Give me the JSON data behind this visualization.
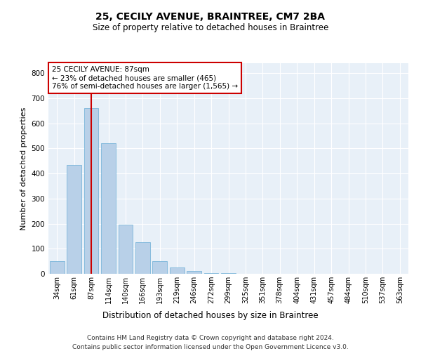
{
  "title1": "25, CECILY AVENUE, BRAINTREE, CM7 2BA",
  "title2": "Size of property relative to detached houses in Braintree",
  "xlabel": "Distribution of detached houses by size in Braintree",
  "ylabel": "Number of detached properties",
  "footer1": "Contains HM Land Registry data © Crown copyright and database right 2024.",
  "footer2": "Contains public sector information licensed under the Open Government Licence v3.0.",
  "annotation_line1": "25 CECILY AVENUE: 87sqm",
  "annotation_line2": "← 23% of detached houses are smaller (465)",
  "annotation_line3": "76% of semi-detached houses are larger (1,565) →",
  "bar_labels": [
    "34sqm",
    "61sqm",
    "87sqm",
    "114sqm",
    "140sqm",
    "166sqm",
    "193sqm",
    "219sqm",
    "246sqm",
    "272sqm",
    "299sqm",
    "325sqm",
    "351sqm",
    "378sqm",
    "404sqm",
    "431sqm",
    "457sqm",
    "484sqm",
    "510sqm",
    "537sqm",
    "563sqm"
  ],
  "bar_values": [
    50,
    435,
    660,
    520,
    195,
    125,
    50,
    25,
    10,
    3,
    2,
    0,
    0,
    0,
    0,
    0,
    0,
    0,
    0,
    0,
    0
  ],
  "bar_color": "#b8d0e8",
  "bar_edge_color": "#6aaed6",
  "highlight_bar_index": 2,
  "highlight_color": "#cc0000",
  "ylim": [
    0,
    840
  ],
  "yticks": [
    0,
    100,
    200,
    300,
    400,
    500,
    600,
    700,
    800
  ],
  "background_color": "#e8f0f8",
  "grid_color": "#ffffff",
  "annotation_box_color": "#ffffff",
  "annotation_box_edge": "#cc0000",
  "fig_width": 6.0,
  "fig_height": 5.0,
  "fig_dpi": 100
}
